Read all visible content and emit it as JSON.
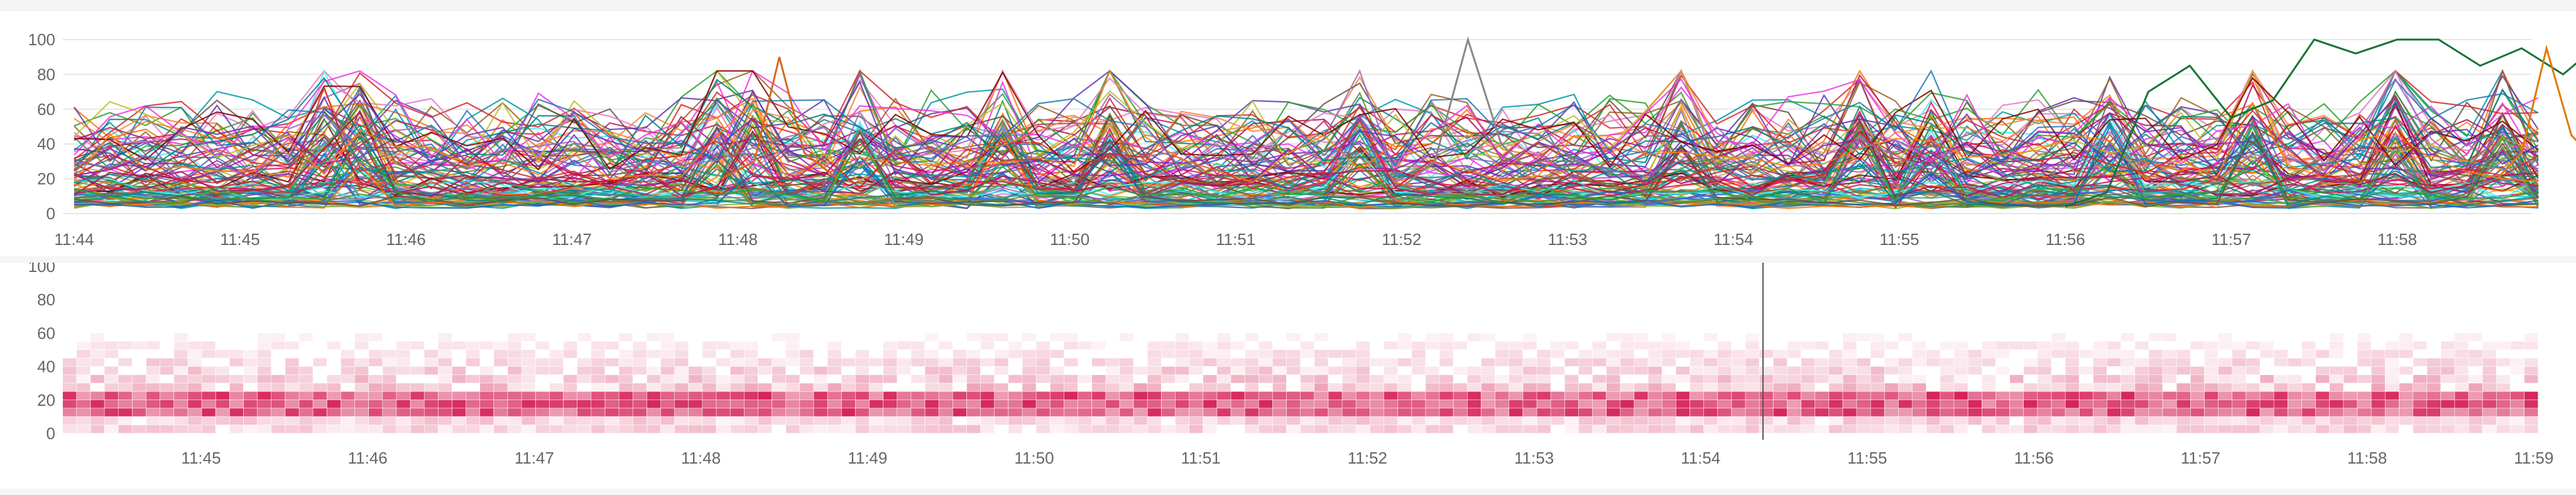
{
  "chart_data": [
    {
      "type": "line",
      "title": "",
      "xlabel": "",
      "ylabel": "",
      "ylim": [
        0,
        100
      ],
      "yticks": [
        0,
        20,
        40,
        60,
        80,
        100
      ],
      "xticks": [
        "11:44",
        "11:45",
        "11:46",
        "11:47",
        "11:48",
        "11:49",
        "11:50",
        "11:51",
        "11:52",
        "11:53",
        "11:54",
        "11:55",
        "11:56",
        "11:57",
        "11:58"
      ],
      "x_range_minutes": [
        0,
        14.85
      ],
      "grid": true,
      "legend": "none",
      "series_count_estimate": 100,
      "highlighted_series": [
        {
          "color": "#137333",
          "points": [
            [
              12.0,
              4
            ],
            [
              12.25,
              12
            ],
            [
              12.5,
              70
            ],
            [
              12.75,
              85
            ],
            [
              13.0,
              55
            ],
            [
              13.25,
              65
            ],
            [
              13.5,
              100
            ],
            [
              13.75,
              92
            ],
            [
              14.0,
              100
            ],
            [
              14.25,
              100
            ],
            [
              14.5,
              85
            ],
            [
              14.75,
              95
            ],
            [
              15.0,
              80
            ],
            [
              15.25,
              100
            ],
            [
              15.5,
              100
            ],
            [
              15.75,
              98
            ],
            [
              16.0,
              50
            ]
          ]
        },
        {
          "color": "#888888",
          "points": [
            [
              8.0,
              15
            ],
            [
              8.2,
              30
            ],
            [
              8.4,
              100
            ],
            [
              8.6,
              40
            ],
            [
              8.8,
              22
            ]
          ]
        },
        {
          "color": "#d2691e",
          "points": [
            [
              3.9,
              20
            ],
            [
              4.1,
              30
            ],
            [
              4.25,
              90
            ],
            [
              4.4,
              35
            ],
            [
              4.6,
              20
            ]
          ]
        },
        {
          "color": "#e07b00",
          "points": [
            [
              14.6,
              20
            ],
            [
              14.75,
              35
            ],
            [
              14.9,
              95
            ],
            [
              15.05,
              45
            ],
            [
              15.2,
              30
            ]
          ]
        }
      ],
      "background_band_typical": [
        5,
        35
      ]
    },
    {
      "type": "heatmap",
      "title": "",
      "xlabel": "",
      "ylabel": "",
      "ylim": [
        0,
        100
      ],
      "yticks": [
        0,
        20,
        40,
        60,
        80,
        100
      ],
      "xticks": [
        "11:45",
        "11:46",
        "11:47",
        "11:48",
        "11:49",
        "11:50",
        "11:51",
        "11:52",
        "11:53",
        "11:54",
        "11:55",
        "11:56",
        "11:57",
        "11:58",
        "11:59"
      ],
      "bucket_size": 5,
      "color": "#d6245a",
      "hot_band": [
        10,
        25
      ],
      "cursor_time": "11:54.4"
    }
  ]
}
